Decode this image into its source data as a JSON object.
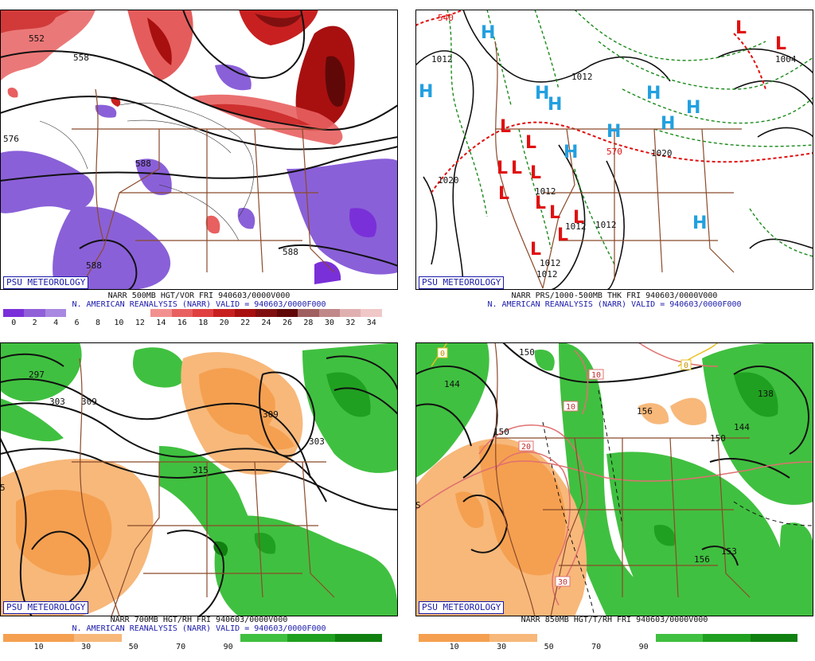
{
  "branding": "PSU METEOROLOGY",
  "panels": [
    {
      "caption": "NARR 500MB HGT/VOR FRI 940603/0000V000",
      "subcaption": "N. AMERICAN REANALYSIS (NARR) VALID = 940603/0000F000",
      "colorbar": {
        "colors": [
          "#7a30d8",
          "#9060d8",
          "#a888e0",
          "#ffffff",
          "#ffffff",
          "#ffffff",
          "#ffffff",
          "#f29090",
          "#e86060",
          "#e04040",
          "#c82020",
          "#a81010",
          "#801010",
          "#600808",
          "#a06060",
          "#c08888",
          "#e0b0b0",
          "#f0c8c8"
        ],
        "labels": [
          "0",
          "2",
          "4",
          "6",
          "8",
          "10",
          "12",
          "14",
          "16",
          "18",
          "20",
          "22",
          "24",
          "26",
          "28",
          "30",
          "32",
          "34"
        ]
      },
      "contour_labels": [
        "552",
        "558",
        "576",
        "588",
        "588",
        "588"
      ]
    },
    {
      "caption": "NARR PRS/1000-500MB THK FRI 940603/0000V000",
      "subcaption": "N. AMERICAN REANALYSIS (NARR) VALID = 940603/0000F000",
      "contour_labels": [
        "540",
        "1012",
        "1012",
        "1020",
        "1020",
        "1012",
        "1012",
        "1012",
        "1012",
        "1004",
        "570",
        "1012"
      ],
      "highs": [
        "H",
        "H",
        "H",
        "H",
        "H",
        "H",
        "H",
        "H",
        "H",
        "H"
      ],
      "lows": [
        "L",
        "L",
        "L",
        "L",
        "L",
        "L",
        "L",
        "L",
        "L",
        "L",
        "L",
        "L",
        "L"
      ]
    },
    {
      "caption": "NARR 700MB HGT/RH FRI 940603/0000V000",
      "subcaption": "N. AMERICAN REANALYSIS (NARR) VALID = 940603/0000F000",
      "colorbar": {
        "colors": [
          "#f5a050",
          "#f5a050",
          "#f5a050",
          "#f7b87a",
          "#f7b87a",
          "#ffffff",
          "#ffffff",
          "#ffffff",
          "#ffffff",
          "#ffffff",
          "#40c040",
          "#40c040",
          "#20a020",
          "#20a020",
          "#108010",
          "#108010"
        ],
        "labels": [
          "10",
          "30",
          "50",
          "70",
          "90"
        ]
      },
      "contour_labels": [
        "297",
        "303",
        "309",
        "309",
        "303",
        "315",
        "5"
      ]
    },
    {
      "caption": "NARR 850MB HGT/T/RH FRI 940603/0000V000",
      "subcaption": "",
      "colorbar": {
        "colors": [
          "#f5a050",
          "#f5a050",
          "#f5a050",
          "#f7b87a",
          "#f7b87a",
          "#ffffff",
          "#ffffff",
          "#ffffff",
          "#ffffff",
          "#ffffff",
          "#40c040",
          "#40c040",
          "#20a020",
          "#20a020",
          "#108010",
          "#108010"
        ],
        "labels": [
          "10",
          "30",
          "50",
          "70",
          "90"
        ]
      },
      "contour_labels": [
        "144",
        "150",
        "156",
        "150",
        "138",
        "144",
        "150",
        "156",
        "153",
        "S"
      ],
      "temp_labels": [
        "0",
        "10",
        "10",
        "20",
        "30",
        "0"
      ]
    }
  ]
}
